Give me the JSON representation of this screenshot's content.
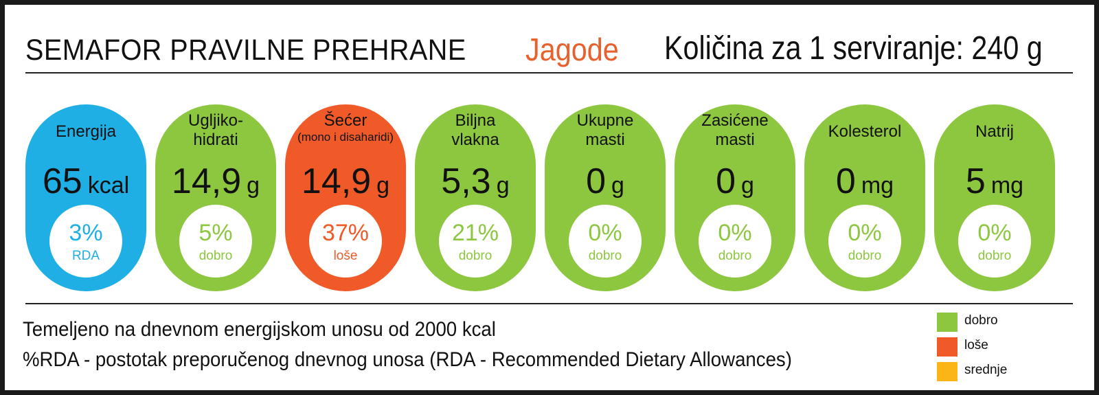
{
  "header": {
    "title": "SEMAFOR PRAVILNE PREHRANE",
    "product": "Jagode",
    "serving": "Količina za 1 serviranje: 240 g"
  },
  "colors": {
    "good": "#8dc63f",
    "bad": "#f05a28",
    "medium": "#fbb516",
    "energy": "#1fafe5",
    "product_text": "#e8602c"
  },
  "nutrients": [
    {
      "name": "Energija",
      "sub": "",
      "value": "65",
      "unit": "kcal",
      "percent": "3%",
      "rating": "RDA",
      "status": "energy"
    },
    {
      "name": "Ugljiko-\nhidrati",
      "sub": "",
      "value": "14,9",
      "unit": "g",
      "percent": "5%",
      "rating": "dobro",
      "status": "good"
    },
    {
      "name": "Šećer",
      "sub": "(mono i disaharidi)",
      "value": "14,9",
      "unit": "g",
      "percent": "37%",
      "rating": "loše",
      "status": "bad"
    },
    {
      "name": "Biljna\nvlakna",
      "sub": "",
      "value": "5,3",
      "unit": "g",
      "percent": "21%",
      "rating": "dobro",
      "status": "good"
    },
    {
      "name": "Ukupne\nmasti",
      "sub": "",
      "value": "0",
      "unit": "g",
      "percent": "0%",
      "rating": "dobro",
      "status": "good"
    },
    {
      "name": "Zasićene\nmasti",
      "sub": "",
      "value": "0",
      "unit": "g",
      "percent": "0%",
      "rating": "dobro",
      "status": "good"
    },
    {
      "name": "Kolesterol",
      "sub": "",
      "value": "0",
      "unit": "mg",
      "percent": "0%",
      "rating": "dobro",
      "status": "good"
    },
    {
      "name": "Natrij",
      "sub": "",
      "value": "5",
      "unit": "mg",
      "percent": "0%",
      "rating": "dobro",
      "status": "good"
    }
  ],
  "footer": {
    "line1": "Temeljeno na dnevnom energijskom unosu od 2000 kcal",
    "line2": "%RDA - postotak preporučenog dnevnog unosa (RDA - Recommended Dietary Allowances)"
  },
  "legend": [
    {
      "label": "dobro",
      "status": "good"
    },
    {
      "label": "loše",
      "status": "bad"
    },
    {
      "label": "srednje",
      "status": "medium"
    }
  ]
}
